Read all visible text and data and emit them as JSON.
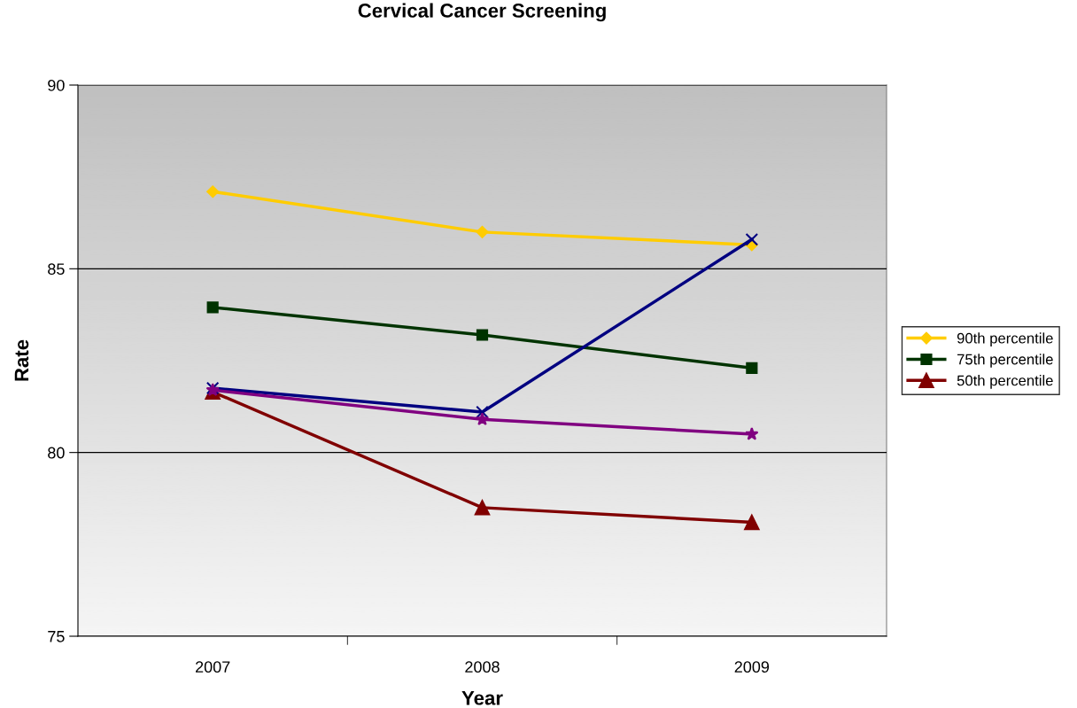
{
  "chart_data": {
    "type": "line",
    "title": "Cervical Cancer Screening",
    "xlabel": "Year",
    "ylabel": "Rate",
    "categories": [
      "2007",
      "2008",
      "2009"
    ],
    "series": [
      {
        "name": "90th percentile",
        "color": "#ffcc00",
        "marker": "diamond",
        "values": [
          87.1,
          86.0,
          85.65
        ]
      },
      {
        "name": "75th percentile",
        "color": "#003300",
        "marker": "square",
        "values": [
          83.95,
          83.2,
          82.3
        ]
      },
      {
        "name": "50th percentile",
        "color": "#800000",
        "marker": "triangle",
        "values": [
          81.65,
          78.5,
          78.1
        ]
      },
      {
        "color": "#000080",
        "marker": "cross",
        "values": [
          81.75,
          81.1,
          85.8
        ]
      },
      {
        "color": "#800080",
        "marker": "star",
        "values": [
          81.7,
          80.9,
          80.5
        ]
      }
    ],
    "ylim": [
      75,
      90
    ],
    "yticks": [
      75,
      80,
      85,
      90
    ],
    "grid": "y",
    "legend": "right"
  }
}
